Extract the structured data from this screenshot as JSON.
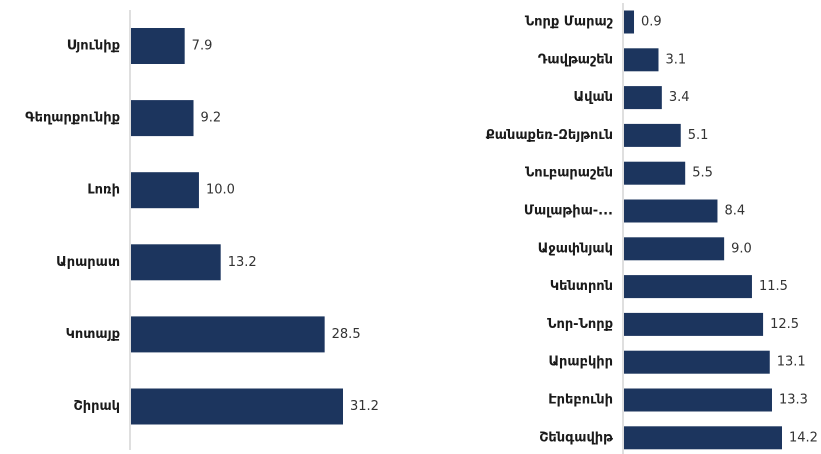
{
  "chart_data": [
    {
      "type": "bar",
      "orientation": "horizontal",
      "color": "#1c355e",
      "categories": [
        "Սյունիք",
        "Գեղարքունիք",
        "Լոռի",
        "Արարատ",
        "Կոտայք",
        "Շիրակ"
      ],
      "values": [
        7.9,
        9.2,
        10.0,
        13.2,
        28.5,
        31.2
      ],
      "value_labels": [
        "7.9",
        "9.2",
        "10.0",
        "13.2",
        "28.5",
        "31.2"
      ]
    },
    {
      "type": "bar",
      "orientation": "horizontal",
      "color": "#1c355e",
      "categories": [
        "Նորք Մարաշ",
        "Դավթաշեն",
        "Ավան",
        "Քանաքեռ-Զեյթուն",
        "Նուբարաշեն",
        "Մալաթիա-...",
        "Աջափնյակ",
        "Կենտրոն",
        "Նոր-Նորք",
        "Արաբկիր",
        "Էրեբունի",
        "Շենգավիթ"
      ],
      "values": [
        0.9,
        3.1,
        3.4,
        5.1,
        5.5,
        8.4,
        9.0,
        11.5,
        12.5,
        13.1,
        13.3,
        14.2
      ],
      "value_labels": [
        "0.9",
        "3.1",
        "3.4",
        "5.1",
        "5.5",
        "8.4",
        "9.0",
        "11.5",
        "12.5",
        "13.1",
        "13.3",
        "14.2"
      ]
    }
  ]
}
